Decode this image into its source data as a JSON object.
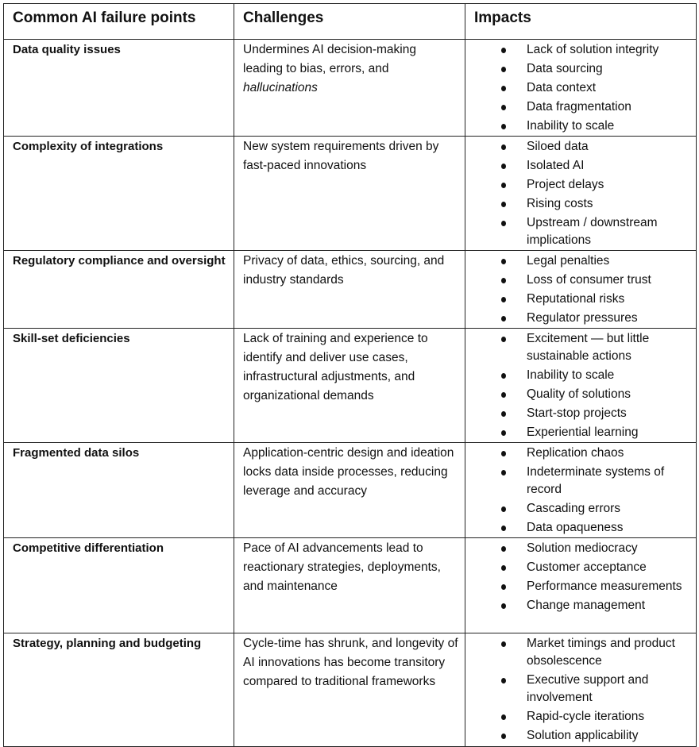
{
  "headers": [
    "Common AI failure points",
    "Challenges",
    "Impacts"
  ],
  "rows": [
    {
      "point": "Data quality issues",
      "challenge": "Undermines AI decision-making leading to bias, errors, and",
      "challenge_italic": "hallucinations",
      "impacts": [
        "Lack of solution integrity",
        "Data sourcing",
        "Data context",
        "Data fragmentation",
        "Inability to scale"
      ]
    },
    {
      "point": "Complexity of integrations",
      "challenge": "New system requirements driven by fast-paced innovations",
      "impacts": [
        "Siloed data",
        "Isolated AI",
        "Project delays",
        "Rising costs",
        "Upstream / downstream implications"
      ]
    },
    {
      "point": "Regulatory compliance and oversight",
      "challenge": "Privacy of data, ethics, sourcing, and industry standards",
      "impacts": [
        "Legal penalties",
        "Loss of consumer trust",
        "Reputational risks",
        "Regulator pressures"
      ]
    },
    {
      "point": "Skill-set deficiencies",
      "challenge": "Lack of training and experience to identify and deliver use cases, infrastructural adjustments, and organizational demands",
      "impacts": [
        "Excitement — but little sustainable actions",
        "Inability to scale",
        "Quality of solutions",
        "Start-stop projects",
        "Experiential learning"
      ]
    },
    {
      "point": "Fragmented data silos",
      "challenge": "Application-centric design and ideation locks data inside processes, reducing leverage and accuracy",
      "impacts": [
        "Replication chaos",
        "Indeterminate systems of record",
        "Cascading errors",
        "Data opaqueness"
      ]
    },
    {
      "point": "Competitive differentiation",
      "challenge": "Pace of AI advancements lead to reactionary strategies, deployments, and maintenance",
      "impacts": [
        "Solution mediocracy",
        "Customer acceptance",
        "Performance measurements",
        "Change management"
      ]
    },
    {
      "point": "Strategy, planning and budgeting",
      "challenge": "Cycle-time has shrunk, and longevity of AI innovations has become transitory compared to traditional frameworks",
      "impacts": [
        "Market timings and product obsolescence",
        "Executive support and involvement",
        "Rapid-cycle iterations",
        "Solution applicability"
      ]
    }
  ]
}
